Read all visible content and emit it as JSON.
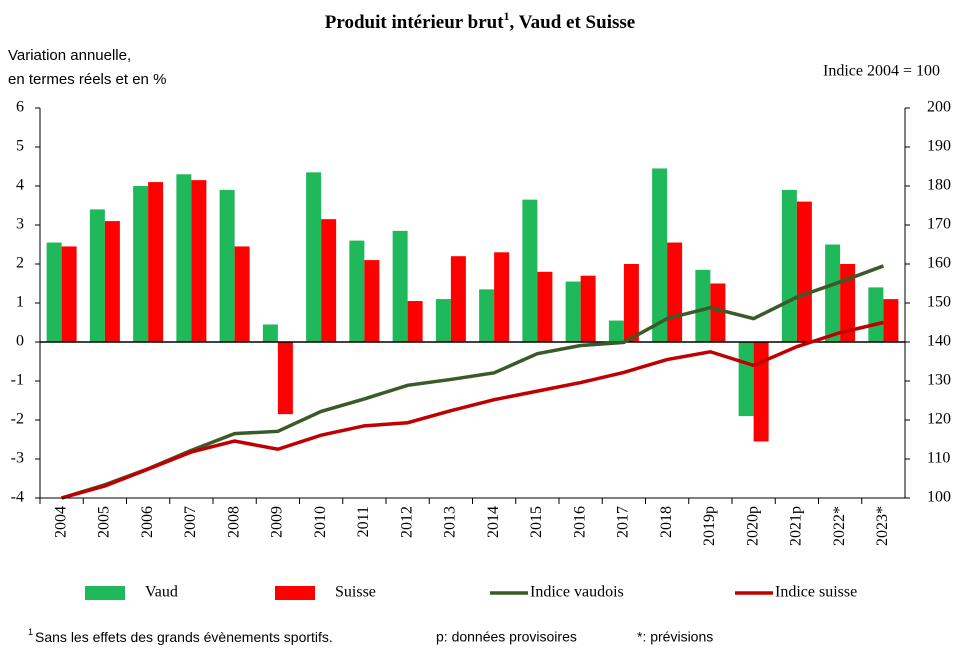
{
  "chart_data": {
    "type": "bar_line",
    "title": "Produit intérieur brut",
    "title_superscript": "1",
    "title_suffix": ", Vaud et Suisse",
    "y_label": [
      "Variation annuelle,",
      "en termes réels et en %"
    ],
    "y2_label": "Indice 2004 = 100",
    "categories": [
      "2004",
      "2005",
      "2006",
      "2007",
      "2008",
      "2009",
      "2010",
      "2011",
      "2012",
      "2013",
      "2014",
      "2015",
      "2016",
      "2017",
      "2018",
      "2019p",
      "2020p",
      "2021p",
      "2022*",
      "2023*"
    ],
    "series": [
      {
        "name": "Vaud",
        "type": "bar",
        "color": "#1fb85a",
        "values": [
          2.55,
          3.4,
          4.0,
          4.3,
          3.9,
          0.45,
          4.35,
          2.6,
          2.85,
          1.1,
          1.35,
          3.65,
          1.55,
          0.55,
          4.45,
          1.85,
          -1.9,
          3.9,
          2.5,
          1.4
        ]
      },
      {
        "name": "Suisse",
        "type": "bar",
        "color": "#ff0000",
        "values": [
          2.45,
          3.1,
          4.1,
          4.15,
          2.45,
          -1.85,
          3.15,
          2.1,
          1.05,
          2.2,
          2.3,
          1.8,
          1.7,
          2.0,
          2.55,
          1.5,
          -2.55,
          3.6,
          2.0,
          1.1
        ]
      },
      {
        "name": "Indice vaudois",
        "type": "line",
        "axis": "y2",
        "color": "#3a5a28",
        "values": [
          100,
          103.4,
          107.5,
          112.2,
          116.5,
          117.1,
          122.2,
          125.4,
          128.9,
          130.4,
          132.1,
          137,
          139.1,
          139.9,
          146,
          148.8,
          146,
          151.5,
          155.4,
          159.5
        ]
      },
      {
        "name": "Indice suisse",
        "type": "line",
        "axis": "y2",
        "color": "#c00000",
        "values": [
          100,
          103.1,
          107.4,
          111.8,
          114.6,
          112.5,
          116.1,
          118.5,
          119.3,
          122.4,
          125.2,
          127.4,
          129.6,
          132.2,
          135.5,
          137.5,
          134,
          138.8,
          142.4,
          145
        ]
      }
    ],
    "ylim": [
      -4,
      6
    ],
    "yticks": [
      -4,
      -3,
      -2,
      -1,
      0,
      1,
      2,
      3,
      4,
      5,
      6
    ],
    "y2lim": [
      100,
      200
    ],
    "y2ticks": [
      100,
      110,
      120,
      130,
      140,
      150,
      160,
      170,
      180,
      190,
      200
    ],
    "grid": false,
    "footnotes": [
      {
        "marker": "1",
        "text": "Sans les effets des grands évènements sportifs."
      },
      "p: données provisoires",
      "*: prévisions"
    ]
  }
}
